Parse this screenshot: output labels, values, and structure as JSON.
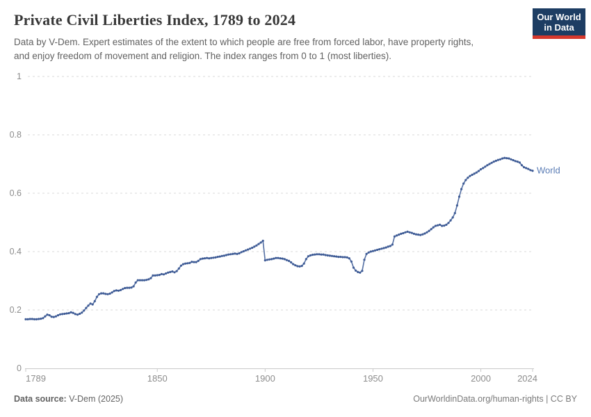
{
  "header": {
    "title": "Private Civil Liberties Index, 1789 to 2024",
    "subtitle_line1": "Data by V-Dem. Expert estimates of the extent to which people are free from forced labor, have property rights,",
    "subtitle_line2": "and enjoy freedom of movement and religion. The index ranges from 0 to 1 (most liberties)."
  },
  "logo": {
    "line1": "Our World",
    "line2": "in Data",
    "bg_color": "#1d3d63",
    "bar_color": "#d6382c"
  },
  "chart_data": {
    "type": "line",
    "title": "Private Civil Liberties Index, 1789 to 2024",
    "xlabel": "",
    "ylabel": "",
    "ylim": [
      0,
      1
    ],
    "xlim": [
      1789,
      2024
    ],
    "y_ticks": [
      "0",
      "0.2",
      "0.4",
      "0.6",
      "0.8",
      "1"
    ],
    "y_tick_values": [
      0,
      0.2,
      0.4,
      0.6,
      0.8,
      1
    ],
    "x_ticks": [
      1789,
      1850,
      1900,
      1950,
      2000,
      2024
    ],
    "grid": "dashed-horizontal",
    "legend_position": "end-of-line",
    "line_color": "#546fa3",
    "marker_color": "#3f5c96",
    "label_color": "#5a7cb5",
    "grid_color": "#dadada",
    "axis_color": "#c9c9c9",
    "series": [
      {
        "name": "World",
        "start_year": 1789,
        "end_year": 2024,
        "values": [
          0.168,
          0.168,
          0.169,
          0.169,
          0.168,
          0.168,
          0.169,
          0.17,
          0.172,
          0.178,
          0.184,
          0.182,
          0.177,
          0.176,
          0.178,
          0.182,
          0.185,
          0.186,
          0.187,
          0.188,
          0.189,
          0.192,
          0.19,
          0.186,
          0.184,
          0.187,
          0.191,
          0.198,
          0.207,
          0.215,
          0.222,
          0.219,
          0.23,
          0.245,
          0.254,
          0.257,
          0.257,
          0.255,
          0.254,
          0.256,
          0.26,
          0.265,
          0.267,
          0.266,
          0.268,
          0.272,
          0.275,
          0.276,
          0.276,
          0.277,
          0.281,
          0.294,
          0.302,
          0.302,
          0.302,
          0.302,
          0.303,
          0.305,
          0.309,
          0.318,
          0.318,
          0.319,
          0.32,
          0.323,
          0.322,
          0.325,
          0.328,
          0.33,
          0.332,
          0.329,
          0.333,
          0.342,
          0.352,
          0.357,
          0.359,
          0.36,
          0.361,
          0.365,
          0.364,
          0.364,
          0.368,
          0.374,
          0.376,
          0.377,
          0.378,
          0.377,
          0.378,
          0.379,
          0.38,
          0.382,
          0.383,
          0.385,
          0.386,
          0.388,
          0.39,
          0.391,
          0.392,
          0.393,
          0.392,
          0.394,
          0.398,
          0.401,
          0.404,
          0.407,
          0.41,
          0.413,
          0.417,
          0.421,
          0.426,
          0.431,
          0.437,
          0.37,
          0.372,
          0.373,
          0.374,
          0.376,
          0.378,
          0.378,
          0.377,
          0.376,
          0.374,
          0.371,
          0.368,
          0.363,
          0.357,
          0.353,
          0.35,
          0.349,
          0.351,
          0.359,
          0.374,
          0.384,
          0.387,
          0.389,
          0.39,
          0.391,
          0.391,
          0.39,
          0.39,
          0.388,
          0.387,
          0.386,
          0.385,
          0.384,
          0.383,
          0.382,
          0.382,
          0.381,
          0.381,
          0.38,
          0.377,
          0.366,
          0.345,
          0.335,
          0.33,
          0.328,
          0.334,
          0.372,
          0.392,
          0.397,
          0.4,
          0.402,
          0.404,
          0.406,
          0.408,
          0.41,
          0.412,
          0.414,
          0.417,
          0.419,
          0.424,
          0.452,
          0.455,
          0.458,
          0.461,
          0.463,
          0.466,
          0.468,
          0.466,
          0.464,
          0.461,
          0.459,
          0.458,
          0.457,
          0.459,
          0.462,
          0.466,
          0.471,
          0.477,
          0.483,
          0.488,
          0.49,
          0.492,
          0.488,
          0.489,
          0.492,
          0.498,
          0.507,
          0.517,
          0.532,
          0.558,
          0.588,
          0.614,
          0.633,
          0.645,
          0.653,
          0.659,
          0.663,
          0.667,
          0.671,
          0.676,
          0.682,
          0.686,
          0.691,
          0.696,
          0.7,
          0.704,
          0.708,
          0.711,
          0.714,
          0.716,
          0.719,
          0.721,
          0.72,
          0.719,
          0.716,
          0.713,
          0.71,
          0.708,
          0.705,
          0.696,
          0.689,
          0.686,
          0.683,
          0.679,
          0.677
        ]
      }
    ]
  },
  "footer": {
    "source_label": "Data source:",
    "source_value": " V-Dem (2025)",
    "credit": "OurWorldinData.org/human-rights | CC BY"
  }
}
